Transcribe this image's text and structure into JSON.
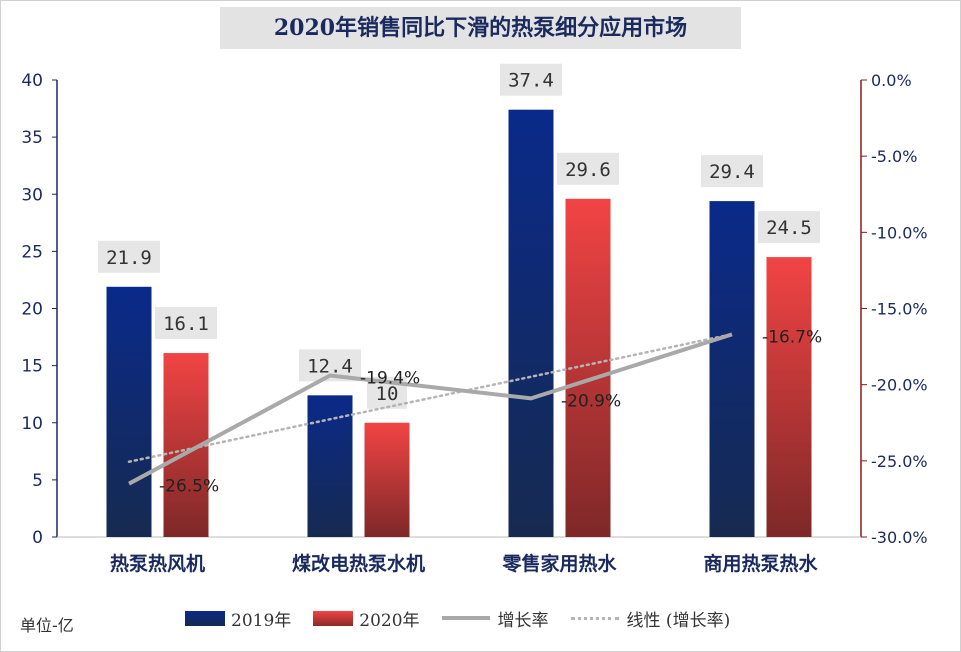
{
  "chart_data": {
    "type": "bar",
    "title": "2020年销售同比下滑的热泵细分应用市场",
    "unit_label": "单位-亿",
    "categories": [
      "热泵热风机",
      "煤改电热泵水机",
      "零售家用热水",
      "商用热泵热水"
    ],
    "series": [
      {
        "name": "2019年",
        "type": "bar",
        "axis": "left",
        "color": "#0d2a7a",
        "values": [
          21.9,
          12.4,
          37.4,
          29.4
        ],
        "labels": [
          "21.9",
          "12.4",
          "37.4",
          "29.4"
        ]
      },
      {
        "name": "2020年",
        "type": "bar",
        "axis": "left",
        "color": "#e83a3a",
        "values": [
          16.1,
          10,
          29.6,
          24.5
        ],
        "labels": [
          "16.1",
          "10",
          "29.6",
          "24.5"
        ]
      },
      {
        "name": "增长率",
        "type": "line",
        "axis": "right",
        "color": "#a9a9a9",
        "values": [
          -26.5,
          -19.4,
          -20.9,
          -16.7
        ],
        "labels": [
          "-26.5%",
          "-19.4%",
          "-20.9%",
          "-16.7%"
        ]
      },
      {
        "name": "线性 (增长率)",
        "type": "trendline",
        "axis": "right",
        "color": "#b5b5b5"
      }
    ],
    "y_left": {
      "min": 0,
      "max": 40,
      "ticks": [
        "0",
        "5",
        "10",
        "15",
        "20",
        "25",
        "30",
        "35",
        "40"
      ]
    },
    "y_right": {
      "min": -30,
      "max": 0,
      "ticks": [
        "0.0%",
        "-5.0%",
        "-10.0%",
        "-15.0%",
        "-20.0%",
        "-25.0%",
        "-30.0%"
      ]
    },
    "legend_position": "bottom",
    "grid": false
  }
}
